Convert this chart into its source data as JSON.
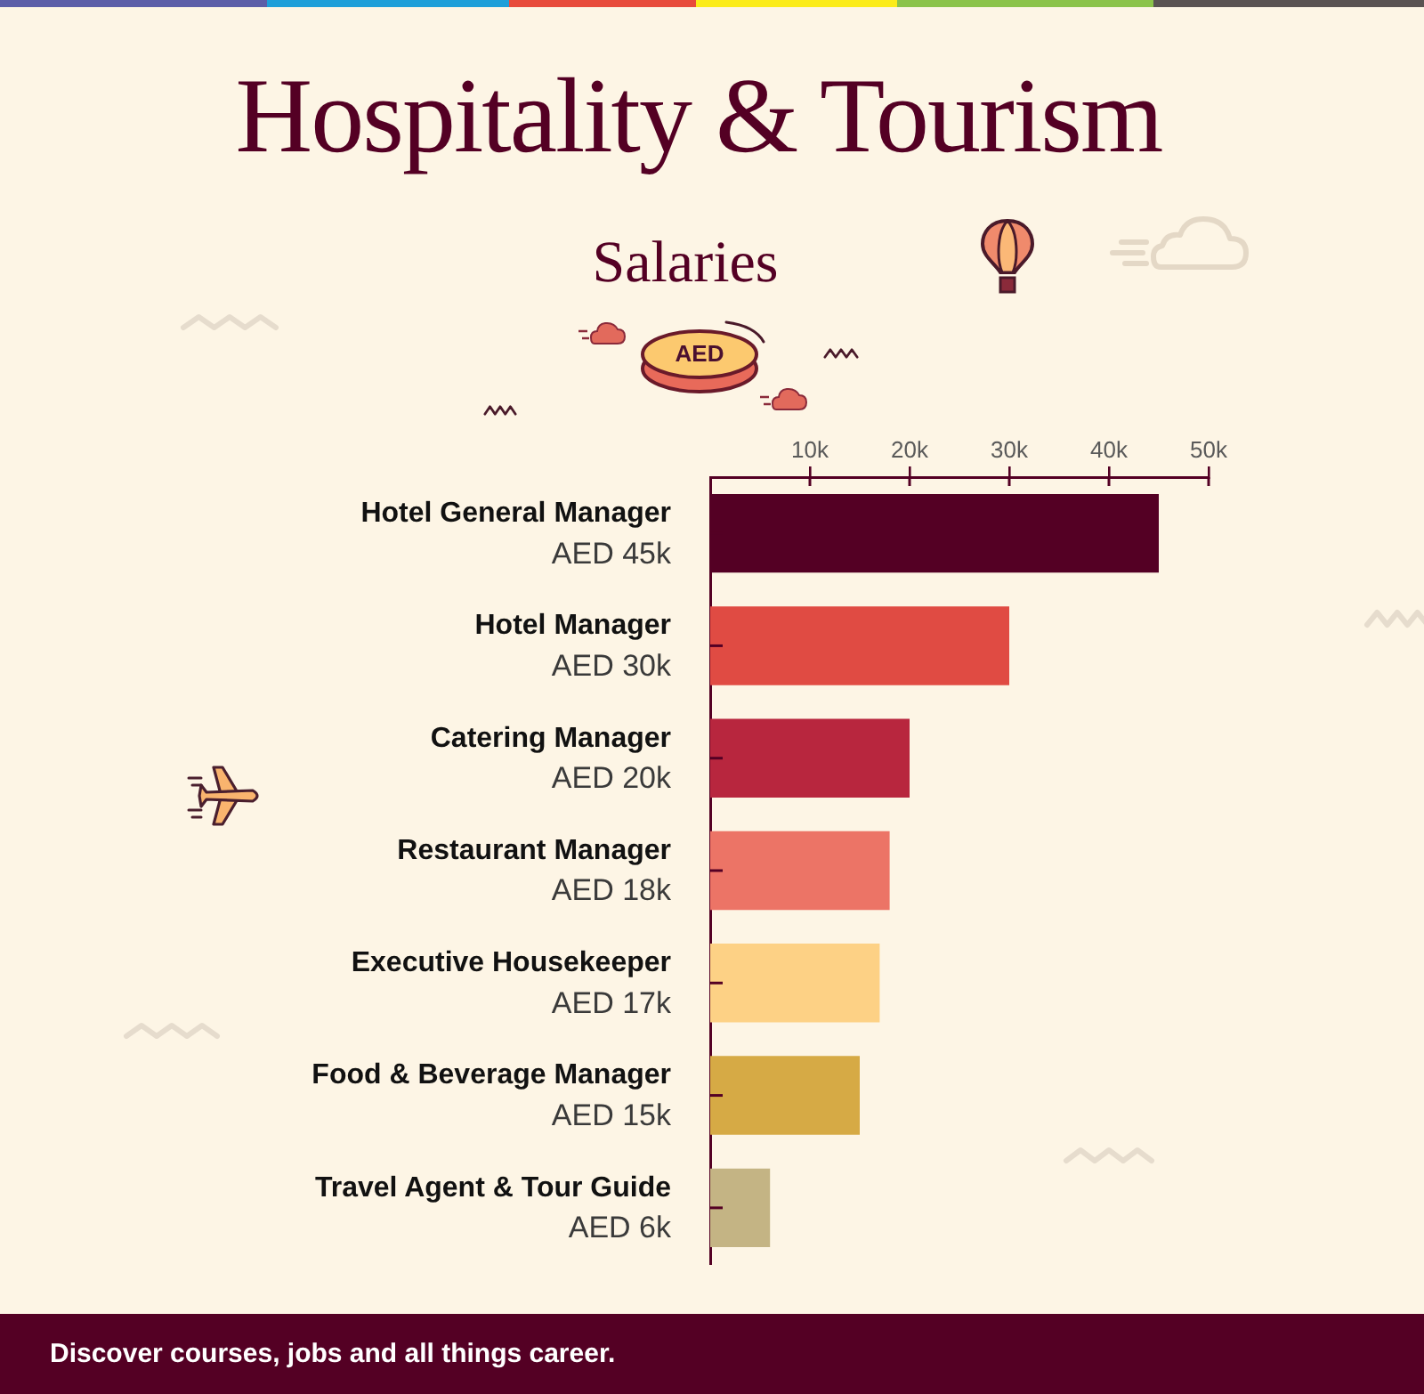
{
  "chart_data": {
    "type": "bar",
    "orientation": "horizontal",
    "title": "Hospitality & Tourism",
    "subtitle": "Salaries",
    "categories": [
      "Hotel General Manager",
      "Hotel Manager",
      "Catering Manager",
      "Restaurant Manager",
      "Executive Housekeeper",
      "Food & Beverage Manager",
      "Travel Agent & Tour Guide"
    ],
    "values": [
      45,
      30,
      20,
      18,
      17,
      15,
      6
    ],
    "colors": [
      "#540024",
      "#e04b43",
      "#b8263e",
      "#ec7466",
      "#fdd185",
      "#d6aa45",
      "#c4b484"
    ],
    "value_labels": [
      "AED 45k",
      "AED 30k",
      "AED 20k",
      "AED 18k",
      "AED 17k",
      "AED 15k",
      "AED 6k"
    ],
    "xlim": [
      0,
      50
    ],
    "xticks": [
      {
        "value": 10,
        "label": "10k"
      },
      {
        "value": 20,
        "label": "20k"
      },
      {
        "value": 30,
        "label": "30k"
      },
      {
        "value": 40,
        "label": "40k"
      },
      {
        "value": 50,
        "label": "50k"
      }
    ],
    "annotations": [
      "AED",
      "Discover courses, jobs and all things career."
    ]
  }
}
